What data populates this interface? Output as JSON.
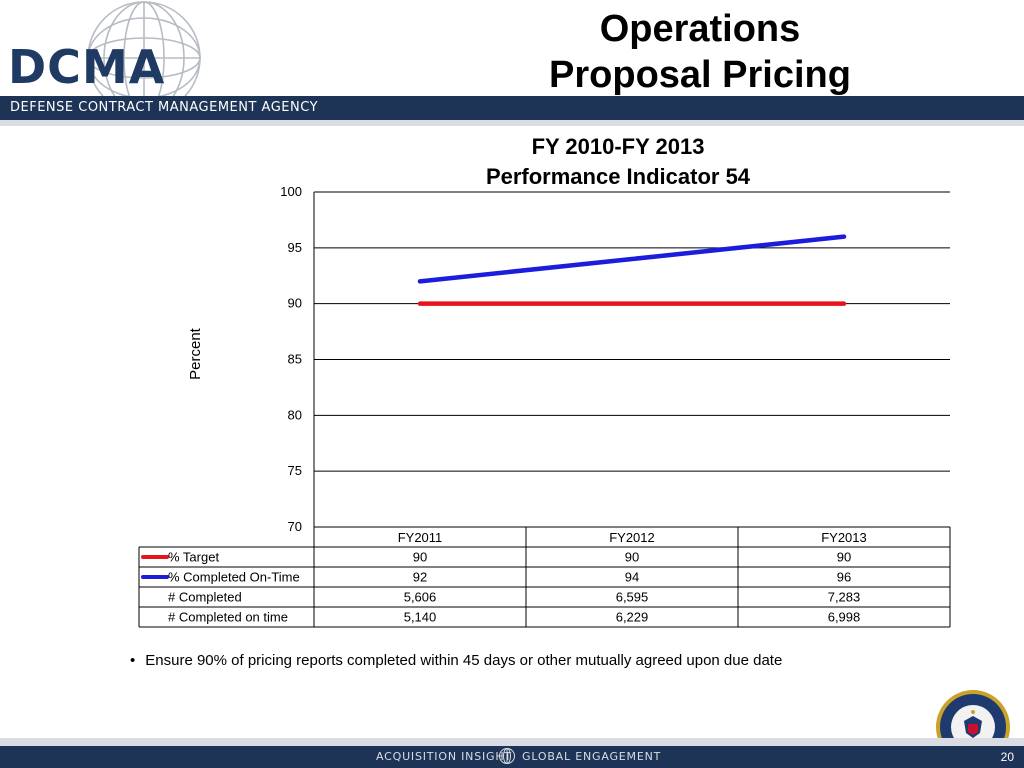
{
  "header": {
    "logo_text": "DCMA",
    "agency_name": "DEFENSE CONTRACT MANAGEMENT AGENCY",
    "title_line1": "Operations",
    "title_line2": "Proposal Pricing"
  },
  "chart_data": {
    "type": "line",
    "title_line1": "FY 2010-FY 2013",
    "title_line2": "Performance Indicator 54",
    "ylabel": "Percent",
    "ylim": [
      70,
      100
    ],
    "yticks": [
      "70",
      "75",
      "80",
      "85",
      "90",
      "95",
      "100"
    ],
    "categories": [
      "FY2011",
      "FY2012",
      "FY2013"
    ],
    "grid": true,
    "series": [
      {
        "name": "% Target",
        "values": [
          90,
          90,
          90
        ],
        "color": "#e8141b"
      },
      {
        "name": "% Completed On-Time",
        "values": [
          92,
          94,
          96
        ],
        "color": "#1c1cdc"
      }
    ],
    "table_rows": [
      {
        "label": "% Target",
        "values": [
          "90",
          "90",
          "90"
        ],
        "legend_color": "#e8141b"
      },
      {
        "label": "% Completed On-Time",
        "values": [
          "92",
          "94",
          "96"
        ],
        "legend_color": "#1c1cdc"
      },
      {
        "label": "# Completed",
        "values": [
          "5,606",
          "6,595",
          "7,283"
        ]
      },
      {
        "label": "# Completed on time",
        "values": [
          "5,140",
          "6,229",
          "6,998"
        ]
      }
    ]
  },
  "note": "Ensure 90% of pricing reports completed within 45 days or other mutually agreed upon due date",
  "footer": {
    "left_tag": "ACQUISITION INSIGHT",
    "right_tag": "GLOBAL ENGAGEMENT",
    "page_number": "20"
  },
  "icons": {
    "globe": "globe-icon",
    "seal": "dod-seal-icon"
  }
}
